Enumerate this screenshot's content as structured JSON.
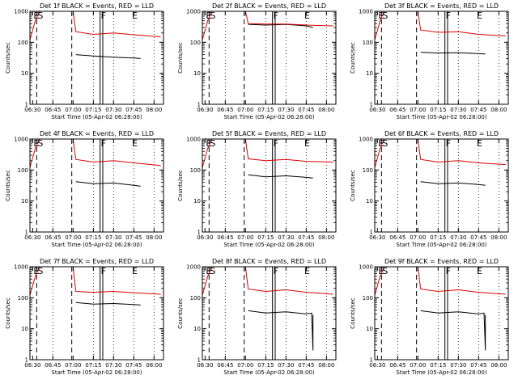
{
  "chart_data": [
    {
      "type": "line",
      "title": "Det 1f BLACK = Events, RED = LLD",
      "xlabel": "Start Time (05-Apr-02 06:28:00)",
      "ylabel": "Counts/sec",
      "yscale": "log",
      "ylim": [
        1,
        1000
      ],
      "yticks": [
        "1",
        "10",
        "100",
        "1000"
      ],
      "xticks": [
        "06:30",
        "06:45",
        "07:00",
        "07:15",
        "07:30",
        "07:45",
        "08:00"
      ],
      "markers": [
        "E",
        "S",
        "F",
        "E"
      ],
      "series": [
        {
          "name": "Events",
          "color": "#000000",
          "points": [
            [
              "07:02",
              40
            ],
            [
              "07:15",
              36
            ],
            [
              "07:30",
              33
            ],
            [
              "07:45",
              31
            ],
            [
              "07:50",
              30
            ]
          ]
        },
        {
          "name": "LLD",
          "color": "#dd0000",
          "points": [
            [
              "06:28",
              120
            ],
            [
              "06:32",
              500
            ],
            [
              "06:35",
              1000
            ],
            [
              "07:00",
              1000
            ],
            [
              "07:02",
              220
            ],
            [
              "07:15",
              180
            ],
            [
              "07:30",
              200
            ],
            [
              "07:45",
              175
            ],
            [
              "08:05",
              150
            ]
          ]
        }
      ]
    },
    {
      "type": "line",
      "title": "Det 2f BLACK = Events, RED = LLD",
      "xlabel": "Start Time (05-Apr-02 06:28:00)",
      "ylabel": "Counts/sec",
      "yscale": "log",
      "ylim": [
        1,
        1000
      ],
      "yticks": [
        "1",
        "10",
        "100",
        "1000"
      ],
      "xticks": [
        "06:30",
        "06:45",
        "07:00",
        "07:15",
        "07:30",
        "07:45",
        "08:00"
      ],
      "markers": [
        "E",
        "S",
        "F",
        "E"
      ],
      "series": [
        {
          "name": "Events",
          "color": "#000000",
          "points": [
            [
              "07:02",
              380
            ],
            [
              "07:15",
              360
            ],
            [
              "07:30",
              380
            ],
            [
              "07:45",
              340
            ],
            [
              "07:50",
              300
            ]
          ]
        },
        {
          "name": "LLD",
          "color": "#dd0000",
          "points": [
            [
              "06:28",
              120
            ],
            [
              "06:32",
              500
            ],
            [
              "06:35",
              1000
            ],
            [
              "07:00",
              1000
            ],
            [
              "07:02",
              400
            ],
            [
              "07:15",
              390
            ],
            [
              "07:30",
              390
            ],
            [
              "07:45",
              360
            ],
            [
              "08:05",
              340
            ]
          ]
        }
      ]
    },
    {
      "type": "line",
      "title": "Det 3f BLACK = Events, RED = LLD",
      "xlabel": "Start Time (05-Apr-02 06:28:00)",
      "ylabel": "Counts/sec",
      "yscale": "log",
      "ylim": [
        1,
        1000
      ],
      "yticks": [
        "1",
        "10",
        "100",
        "1000"
      ],
      "xticks": [
        "06:30",
        "06:45",
        "07:00",
        "07:15",
        "07:30",
        "07:45",
        "08:00"
      ],
      "markers": [
        "E",
        "S",
        "F",
        "E"
      ],
      "series": [
        {
          "name": "Events",
          "color": "#000000",
          "points": [
            [
              "07:02",
              48
            ],
            [
              "07:15",
              45
            ],
            [
              "07:30",
              46
            ],
            [
              "07:45",
              43
            ],
            [
              "07:50",
              42
            ]
          ]
        },
        {
          "name": "LLD",
          "color": "#dd0000",
          "points": [
            [
              "06:28",
              120
            ],
            [
              "06:32",
              500
            ],
            [
              "06:35",
              1000
            ],
            [
              "07:00",
              1000
            ],
            [
              "07:02",
              250
            ],
            [
              "07:15",
              210
            ],
            [
              "07:30",
              220
            ],
            [
              "07:45",
              180
            ],
            [
              "08:05",
              160
            ]
          ]
        }
      ]
    },
    {
      "type": "line",
      "title": "Det 4f BLACK = Events, RED = LLD",
      "xlabel": "Start Time (05-Apr-02 06:28:00)",
      "ylabel": "Counts/sec",
      "yscale": "log",
      "ylim": [
        1,
        1000
      ],
      "yticks": [
        "1",
        "10",
        "100",
        "1000"
      ],
      "xticks": [
        "06:30",
        "06:45",
        "07:00",
        "07:15",
        "07:30",
        "07:45",
        "08:00"
      ],
      "markers": [
        "E",
        "S",
        "F",
        "E"
      ],
      "series": [
        {
          "name": "Events",
          "color": "#000000",
          "points": [
            [
              "07:02",
              42
            ],
            [
              "07:15",
              36
            ],
            [
              "07:30",
              38
            ],
            [
              "07:45",
              32
            ],
            [
              "07:50",
              30
            ]
          ]
        },
        {
          "name": "LLD",
          "color": "#dd0000",
          "points": [
            [
              "06:28",
              120
            ],
            [
              "06:32",
              500
            ],
            [
              "06:35",
              1000
            ],
            [
              "07:00",
              1000
            ],
            [
              "07:02",
              220
            ],
            [
              "07:15",
              180
            ],
            [
              "07:30",
              200
            ],
            [
              "07:45",
              170
            ],
            [
              "08:05",
              140
            ]
          ]
        }
      ]
    },
    {
      "type": "line",
      "title": "Det 5f BLACK = Events, RED = LLD",
      "xlabel": "Start Time (05-Apr-02 06:28:00)",
      "ylabel": "Counts/sec",
      "yscale": "log",
      "ylim": [
        1,
        1000
      ],
      "yticks": [
        "1",
        "10",
        "100",
        "1000"
      ],
      "xticks": [
        "06:30",
        "06:45",
        "07:00",
        "07:15",
        "07:30",
        "07:45",
        "08:00"
      ],
      "markers": [
        "E",
        "S",
        "F",
        "E"
      ],
      "series": [
        {
          "name": "Events",
          "color": "#000000",
          "points": [
            [
              "07:02",
              70
            ],
            [
              "07:15",
              60
            ],
            [
              "07:30",
              65
            ],
            [
              "07:45",
              58
            ],
            [
              "07:50",
              55
            ]
          ]
        },
        {
          "name": "LLD",
          "color": "#dd0000",
          "points": [
            [
              "06:28",
              120
            ],
            [
              "06:32",
              500
            ],
            [
              "06:35",
              1000
            ],
            [
              "07:00",
              1000
            ],
            [
              "07:02",
              230
            ],
            [
              "07:15",
              200
            ],
            [
              "07:30",
              220
            ],
            [
              "07:45",
              190
            ],
            [
              "08:05",
              180
            ]
          ]
        }
      ]
    },
    {
      "type": "line",
      "title": "Det 6f BLACK = Events, RED = LLD",
      "xlabel": "Start Time (05-Apr-02 06:28:00)",
      "ylabel": "Counts/sec",
      "yscale": "log",
      "ylim": [
        1,
        1000
      ],
      "yticks": [
        "1",
        "10",
        "100",
        "1000"
      ],
      "xticks": [
        "06:30",
        "06:45",
        "07:00",
        "07:15",
        "07:30",
        "07:45",
        "08:00"
      ],
      "markers": [
        "E",
        "S",
        "F",
        "E"
      ],
      "series": [
        {
          "name": "Events",
          "color": "#000000",
          "points": [
            [
              "07:02",
              42
            ],
            [
              "07:15",
              36
            ],
            [
              "07:30",
              38
            ],
            [
              "07:45",
              34
            ],
            [
              "07:50",
              32
            ]
          ]
        },
        {
          "name": "LLD",
          "color": "#dd0000",
          "points": [
            [
              "06:28",
              120
            ],
            [
              "06:32",
              500
            ],
            [
              "06:35",
              1000
            ],
            [
              "07:00",
              1000
            ],
            [
              "07:02",
              220
            ],
            [
              "07:15",
              180
            ],
            [
              "07:30",
              200
            ],
            [
              "07:45",
              170
            ],
            [
              "08:05",
              150
            ]
          ]
        }
      ]
    },
    {
      "type": "line",
      "title": "Det 7f BLACK = Events, RED = LLD",
      "xlabel": "Start Time (05-Apr-02 06:28:00)",
      "ylabel": "Counts/sec",
      "yscale": "log",
      "ylim": [
        1,
        1000
      ],
      "yticks": [
        "1",
        "10",
        "100",
        "1000"
      ],
      "xticks": [
        "06:30",
        "06:45",
        "07:00",
        "07:15",
        "07:30",
        "07:45",
        "08:00"
      ],
      "markers": [
        "E",
        "S",
        "F",
        "E"
      ],
      "series": [
        {
          "name": "Events",
          "color": "#000000",
          "points": [
            [
              "07:02",
              70
            ],
            [
              "07:15",
              62
            ],
            [
              "07:30",
              65
            ],
            [
              "07:45",
              60
            ],
            [
              "07:50",
              58
            ]
          ]
        },
        {
          "name": "LLD",
          "color": "#dd0000",
          "points": [
            [
              "06:28",
              120
            ],
            [
              "06:32",
              500
            ],
            [
              "06:35",
              1000
            ],
            [
              "07:00",
              1000
            ],
            [
              "07:02",
              160
            ],
            [
              "07:15",
              150
            ],
            [
              "07:30",
              160
            ],
            [
              "07:45",
              145
            ],
            [
              "08:05",
              130
            ]
          ]
        }
      ]
    },
    {
      "type": "line",
      "title": "Det 8f BLACK = Events, RED = LLD",
      "xlabel": "Start Time (05-Apr-02 06:28:00)",
      "ylabel": "Counts/sec",
      "yscale": "log",
      "ylim": [
        1,
        1000
      ],
      "yticks": [
        "1",
        "10",
        "100",
        "1000"
      ],
      "xticks": [
        "06:30",
        "06:45",
        "07:00",
        "07:15",
        "07:30",
        "07:45",
        "08:00"
      ],
      "markers": [
        "E",
        "S",
        "F",
        "E"
      ],
      "series": [
        {
          "name": "Events",
          "color": "#000000",
          "points": [
            [
              "07:02",
              38
            ],
            [
              "07:15",
              32
            ],
            [
              "07:30",
              35
            ],
            [
              "07:45",
              30
            ],
            [
              "07:49",
              32
            ],
            [
              "07:50",
              2
            ],
            [
              "07:50",
              28
            ]
          ]
        },
        {
          "name": "LLD",
          "color": "#dd0000",
          "points": [
            [
              "06:28",
              120
            ],
            [
              "06:32",
              500
            ],
            [
              "06:35",
              1000
            ],
            [
              "07:00",
              1000
            ],
            [
              "07:02",
              190
            ],
            [
              "07:15",
              160
            ],
            [
              "07:30",
              180
            ],
            [
              "07:45",
              150
            ],
            [
              "08:05",
              130
            ]
          ]
        }
      ]
    },
    {
      "type": "line",
      "title": "Det 9f BLACK = Events, RED = LLD",
      "xlabel": "Start Time (05-Apr-02 06:28:00)",
      "ylabel": "Counts/sec",
      "yscale": "log",
      "ylim": [
        1,
        1000
      ],
      "yticks": [
        "1",
        "10",
        "100",
        "1000"
      ],
      "xticks": [
        "06:30",
        "06:45",
        "07:00",
        "07:15",
        "07:30",
        "07:45",
        "08:00"
      ],
      "markers": [
        "E",
        "S",
        "F",
        "E"
      ],
      "series": [
        {
          "name": "Events",
          "color": "#000000",
          "points": [
            [
              "07:02",
              38
            ],
            [
              "07:15",
              32
            ],
            [
              "07:30",
              35
            ],
            [
              "07:45",
              30
            ],
            [
              "07:49",
              32
            ],
            [
              "07:50",
              2
            ],
            [
              "07:50",
              28
            ]
          ]
        },
        {
          "name": "LLD",
          "color": "#dd0000",
          "points": [
            [
              "06:28",
              120
            ],
            [
              "06:32",
              500
            ],
            [
              "06:35",
              1000
            ],
            [
              "07:00",
              1000
            ],
            [
              "07:02",
              190
            ],
            [
              "07:15",
              160
            ],
            [
              "07:30",
              180
            ],
            [
              "07:45",
              150
            ],
            [
              "08:05",
              130
            ]
          ]
        }
      ]
    }
  ]
}
